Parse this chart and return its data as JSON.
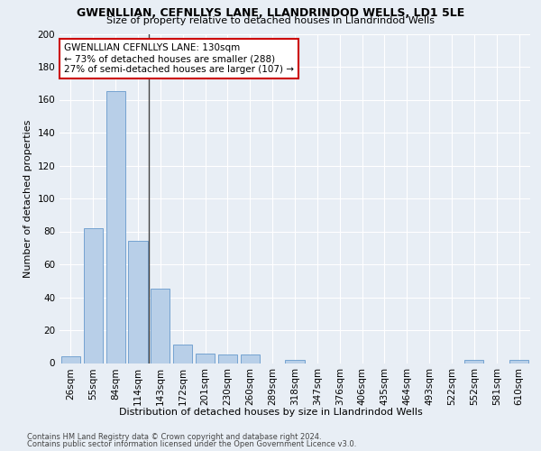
{
  "title": "GWENLLIAN, CEFNLLYS LANE, LLANDRINDOD WELLS, LD1 5LE",
  "subtitle": "Size of property relative to detached houses in Llandrindod Wells",
  "xlabel_dist": "Distribution of detached houses by size in Llandrindod Wells",
  "ylabel": "Number of detached properties",
  "footer1": "Contains HM Land Registry data © Crown copyright and database right 2024.",
  "footer2": "Contains public sector information licensed under the Open Government Licence v3.0.",
  "annotation_line1": "GWENLLIAN CEFNLLYS LANE: 130sqm",
  "annotation_line2": "← 73% of detached houses are smaller (288)",
  "annotation_line3": "27% of semi-detached houses are larger (107) →",
  "categories": [
    "26sqm",
    "55sqm",
    "84sqm",
    "114sqm",
    "143sqm",
    "172sqm",
    "201sqm",
    "230sqm",
    "260sqm",
    "289sqm",
    "318sqm",
    "347sqm",
    "376sqm",
    "406sqm",
    "435sqm",
    "464sqm",
    "493sqm",
    "522sqm",
    "552sqm",
    "581sqm",
    "610sqm"
  ],
  "values": [
    4,
    82,
    165,
    74,
    45,
    11,
    6,
    5,
    5,
    0,
    2,
    0,
    0,
    0,
    0,
    0,
    0,
    0,
    2,
    0,
    2
  ],
  "bar_color": "#b8cfe8",
  "bar_edge_color": "#6699cc",
  "bg_color": "#e8eef5",
  "grid_color": "#ffffff",
  "annotation_box_color": "#ffffff",
  "annotation_box_edge": "#cc0000",
  "vline_color": "#444444",
  "ylim": [
    0,
    200
  ],
  "yticks": [
    0,
    20,
    40,
    60,
    80,
    100,
    120,
    140,
    160,
    180,
    200
  ],
  "title_fontsize": 9,
  "subtitle_fontsize": 8,
  "ylabel_fontsize": 8,
  "tick_fontsize": 7.5,
  "annotation_fontsize": 7.5,
  "footer_fontsize": 6
}
